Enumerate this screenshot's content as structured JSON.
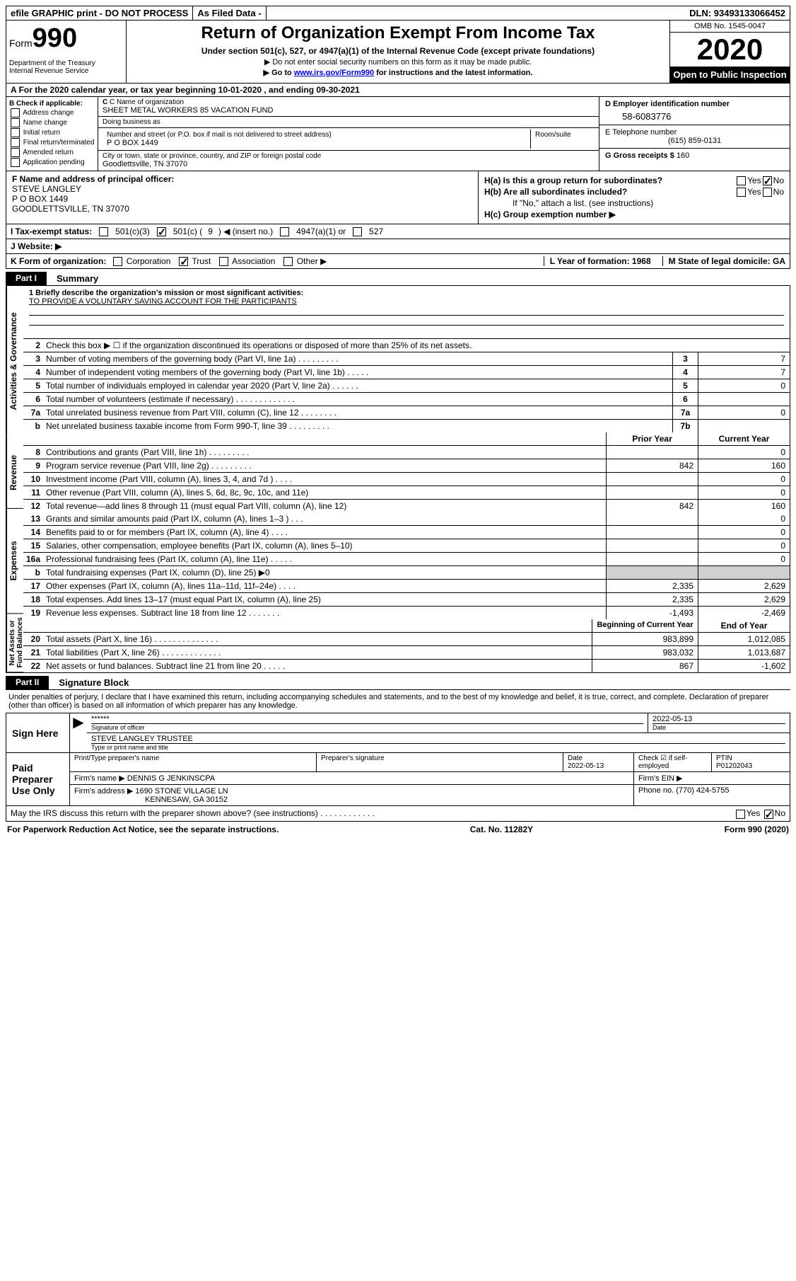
{
  "topbar": {
    "efile": "efile GRAPHIC print - DO NOT PROCESS",
    "asfiled": "As Filed Data -",
    "dln_label": "DLN:",
    "dln": "93493133066452"
  },
  "header": {
    "form_prefix": "Form",
    "form_num": "990",
    "title": "Return of Organization Exempt From Income Tax",
    "sub": "Under section 501(c), 527, or 4947(a)(1) of the Internal Revenue Code (except private foundations)",
    "note1": "▶ Do not enter social security numbers on this form as it may be made public.",
    "note2_pre": "▶ Go to ",
    "note2_link": "www.irs.gov/Form990",
    "note2_post": " for instructions and the latest information.",
    "dept": "Department of the Treasury\nInternal Revenue Service",
    "omb": "OMB No. 1545-0047",
    "year": "2020",
    "otp": "Open to Public Inspection"
  },
  "rowA": "A  For the 2020 calendar year, or tax year beginning 10-01-2020   , and ending 09-30-2021",
  "b": {
    "label": "B Check if applicable:",
    "opts": [
      "Address change",
      "Name change",
      "Initial return",
      "Final return/terminated",
      "Amended return",
      "Application pending"
    ]
  },
  "c": {
    "name_label": "C Name of organization",
    "name": "SHEET METAL WORKERS 85 VACATION FUND",
    "dba_label": "Doing business as",
    "dba": "",
    "addr_label": "Number and street (or P.O. box if mail is not delivered to street address)",
    "room_label": "Room/suite",
    "addr": "P O BOX 1449",
    "city_label": "City or town, state or province, country, and ZIP or foreign postal code",
    "city": "Goodlettsville, TN  37070"
  },
  "d": {
    "label": "D Employer identification number",
    "ein": "58-6083776"
  },
  "e": {
    "label": "E Telephone number",
    "val": "(615) 859-0131"
  },
  "g": {
    "label": "G Gross receipts $",
    "val": "160"
  },
  "f": {
    "label": "F  Name and address of principal officer:",
    "name": "STEVE LANGLEY",
    "addr1": "P O BOX 1449",
    "addr2": "GOODLETTSVILLE, TN  37070"
  },
  "h": {
    "a": "H(a)  Is this a group return for subordinates?",
    "b": "H(b)  Are all subordinates included?",
    "bnote": "If \"No,\" attach a list. (see instructions)",
    "c": "H(c)  Group exemption number ▶",
    "yes": "Yes",
    "no": "No"
  },
  "i": {
    "label": "I  Tax-exempt status:",
    "o1": "501(c)(3)",
    "o2a": "501(c) (",
    "o2b": "9",
    "o2c": ") ◀ (insert no.)",
    "o3": "4947(a)(1) or",
    "o4": "527"
  },
  "j": {
    "label": "J  Website: ▶",
    "val": ""
  },
  "k": {
    "label": "K Form of organization:",
    "opts": [
      "Corporation",
      "Trust",
      "Association",
      "Other ▶"
    ],
    "checked": 1,
    "l": "L Year of formation: 1968",
    "m": "M State of legal domicile: GA"
  },
  "part1": {
    "tab": "Part I",
    "title": "Summary",
    "vtabs": [
      "Activities & Governance",
      "Revenue",
      "Expenses",
      "Net Assets or Fund Balances"
    ],
    "line1_label": "1 Briefly describe the organization's mission or most significant activities:",
    "mission": "TO PROVIDE A VOLUNTARY SAVING ACCOUNT FOR THE PARTICIPANTS",
    "line2": "Check this box ▶ ☐ if the organization discontinued its operations or disposed of more than 25% of its net assets.",
    "rows_ag": [
      {
        "n": "3",
        "t": "Number of voting members of the governing body (Part VI, line 1a)  .  .  .  .  .  .  .  .  .",
        "nc": "3",
        "v": "7"
      },
      {
        "n": "4",
        "t": "Number of independent voting members of the governing body (Part VI, line 1b)  .  .  .  .  .",
        "nc": "4",
        "v": "7"
      },
      {
        "n": "5",
        "t": "Total number of individuals employed in calendar year 2020 (Part V, line 2a)  .  .  .  .  .  .",
        "nc": "5",
        "v": "0"
      },
      {
        "n": "6",
        "t": "Total number of volunteers (estimate if necessary)  .  .  .  .  .  .  .  .  .  .  .  .  .",
        "nc": "6",
        "v": ""
      },
      {
        "n": "7a",
        "t": "Total unrelated business revenue from Part VIII, column (C), line 12  .  .  .  .  .  .  .  .",
        "nc": "7a",
        "v": "0"
      },
      {
        "n": "b",
        "t": "Net unrelated business taxable income from Form 990-T, line 39  .  .  .  .  .  .  .  .  .",
        "nc": "7b",
        "v": ""
      }
    ],
    "hdr_prior": "Prior Year",
    "hdr_curr": "Current Year",
    "rows_rev": [
      {
        "n": "8",
        "t": "Contributions and grants (Part VIII, line 1h)  .  .  .  .  .  .  .  .  .",
        "p": "",
        "c": "0"
      },
      {
        "n": "9",
        "t": "Program service revenue (Part VIII, line 2g)  .  .  .  .  .  .  .  .  .",
        "p": "842",
        "c": "160"
      },
      {
        "n": "10",
        "t": "Investment income (Part VIII, column (A), lines 3, 4, and 7d )  .  .  .  .",
        "p": "",
        "c": "0"
      },
      {
        "n": "11",
        "t": "Other revenue (Part VIII, column (A), lines 5, 6d, 8c, 9c, 10c, and 11e)",
        "p": "",
        "c": "0"
      },
      {
        "n": "12",
        "t": "Total revenue—add lines 8 through 11 (must equal Part VIII, column (A), line 12)",
        "p": "842",
        "c": "160"
      }
    ],
    "rows_exp": [
      {
        "n": "13",
        "t": "Grants and similar amounts paid (Part IX, column (A), lines 1–3 )  .  .  .",
        "p": "",
        "c": "0"
      },
      {
        "n": "14",
        "t": "Benefits paid to or for members (Part IX, column (A), line 4)  .  .  .  .",
        "p": "",
        "c": "0"
      },
      {
        "n": "15",
        "t": "Salaries, other compensation, employee benefits (Part IX, column (A), lines 5–10)",
        "p": "",
        "c": "0"
      },
      {
        "n": "16a",
        "t": "Professional fundraising fees (Part IX, column (A), line 11e)  .  .  .  .  .",
        "p": "",
        "c": "0"
      },
      {
        "n": "b",
        "t": "Total fundraising expenses (Part IX, column (D), line 25) ▶0",
        "p": null,
        "c": null,
        "shaded": true
      },
      {
        "n": "17",
        "t": "Other expenses (Part IX, column (A), lines 11a–11d, 11f–24e)  .  .  .  .",
        "p": "2,335",
        "c": "2,629"
      },
      {
        "n": "18",
        "t": "Total expenses. Add lines 13–17 (must equal Part IX, column (A), line 25)",
        "p": "2,335",
        "c": "2,629"
      },
      {
        "n": "19",
        "t": "Revenue less expenses. Subtract line 18 from line 12  .  .  .  .  .  .  .",
        "p": "-1,493",
        "c": "-2,469"
      }
    ],
    "hdr_beg": "Beginning of Current Year",
    "hdr_end": "End of Year",
    "rows_na": [
      {
        "n": "20",
        "t": "Total assets (Part X, line 16)  .  .  .  .  .  .  .  .  .  .  .  .  .  .",
        "p": "983,899",
        "c": "1,012,085"
      },
      {
        "n": "21",
        "t": "Total liabilities (Part X, line 26)  .  .  .  .  .  .  .  .  .  .  .  .  .",
        "p": "983,032",
        "c": "1,013,687"
      },
      {
        "n": "22",
        "t": "Net assets or fund balances. Subtract line 21 from line 20  .  .  .  .  .",
        "p": "867",
        "c": "-1,602"
      }
    ]
  },
  "part2": {
    "tab": "Part II",
    "title": "Signature Block",
    "perjury": "Under penalties of perjury, I declare that I have examined this return, including accompanying schedules and statements, and to the best of my knowledge and belief, it is true, correct, and complete. Declaration of preparer (other than officer) is based on all information of which preparer has any knowledge.",
    "sign_here": "Sign Here",
    "stars": "******",
    "sig_officer": "Signature of officer",
    "date": "Date",
    "sig_date": "2022-05-13",
    "officer_name": "STEVE LANGLEY TRUSTEE",
    "type_name": "Type or print name and title",
    "paid": "Paid Preparer Use Only",
    "prep_name_lbl": "Print/Type preparer's name",
    "prep_sig_lbl": "Preparer's signature",
    "prep_date_lbl": "Date",
    "prep_date": "2022-05-13",
    "check_self": "Check ☑ if self-employed",
    "ptin_lbl": "PTIN",
    "ptin": "P01202043",
    "firm_name_lbl": "Firm's name    ▶",
    "firm_name": "DENNIS G JENKINSCPA",
    "firm_ein_lbl": "Firm's EIN ▶",
    "firm_addr_lbl": "Firm's address ▶",
    "firm_addr1": "1690 STONE VILLAGE LN",
    "firm_addr2": "KENNESAW, GA  30152",
    "firm_phone_lbl": "Phone no.",
    "firm_phone": "(770) 424-5755",
    "discuss": "May the IRS discuss this return with the preparer shown above? (see instructions)  .  .  .  .  .  .  .  .  .  .  .  .",
    "yes": "Yes",
    "no": "No"
  },
  "footer": {
    "left": "For Paperwork Reduction Act Notice, see the separate instructions.",
    "mid": "Cat. No. 11282Y",
    "right": "Form 990 (2020)"
  }
}
